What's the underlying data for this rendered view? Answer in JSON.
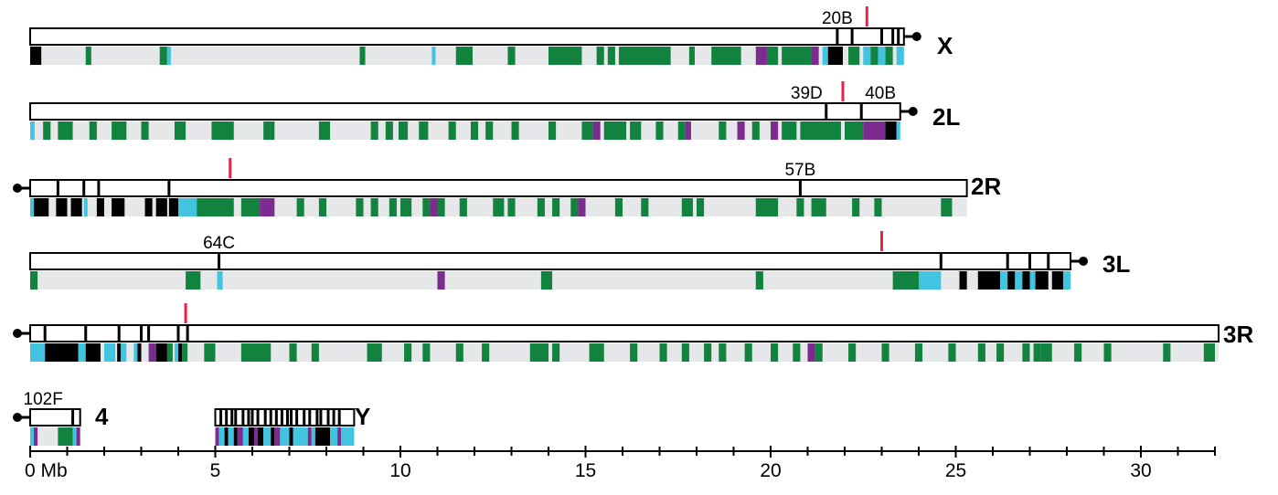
{
  "colors": {
    "track": "#e6e7e8",
    "green": "#12833f",
    "purple": "#7b2c8e",
    "cyan": "#42c3df",
    "black": "#000000",
    "red": "#e8234a",
    "outline": "#000000"
  },
  "axis": {
    "min": 0,
    "max": 32,
    "major_ticks": [
      0,
      5,
      10,
      15,
      20,
      25,
      30
    ],
    "tick_labels": [
      "0 Mb",
      "5",
      "10",
      "15",
      "20",
      "25",
      "30"
    ]
  },
  "chromosomes": [
    {
      "name": "X",
      "centromere": "right",
      "length": 23.6,
      "band_labels": [
        {
          "text": "20B",
          "pos": 21.8
        }
      ],
      "band_lines": [
        21.8,
        22.2,
        23.0,
        23.3,
        23.45
      ],
      "red_marker": 22.6,
      "features": [
        [
          "black",
          0.0,
          0.3
        ],
        [
          "green",
          1.5,
          1.65
        ],
        [
          "green",
          3.5,
          3.7
        ],
        [
          "cyan",
          3.7,
          3.8
        ],
        [
          "green",
          8.9,
          9.05
        ],
        [
          "cyan",
          10.85,
          10.95
        ],
        [
          "green",
          11.5,
          11.95
        ],
        [
          "green",
          12.9,
          13.1
        ],
        [
          "green",
          14.0,
          14.9
        ],
        [
          "green",
          15.3,
          15.5
        ],
        [
          "green",
          15.6,
          15.8
        ],
        [
          "green",
          15.9,
          17.3
        ],
        [
          "green",
          17.8,
          17.95
        ],
        [
          "green",
          18.4,
          19.2
        ],
        [
          "purple",
          19.6,
          19.9
        ],
        [
          "green",
          19.9,
          20.2
        ],
        [
          "green",
          20.3,
          21.1
        ],
        [
          "purple",
          21.1,
          21.3
        ],
        [
          "cyan",
          21.4,
          21.55
        ],
        [
          "black",
          21.55,
          21.95
        ],
        [
          "green",
          22.1,
          22.4
        ],
        [
          "cyan",
          22.5,
          22.7
        ],
        [
          "green",
          22.7,
          22.9
        ],
        [
          "cyan",
          22.9,
          23.1
        ],
        [
          "green",
          23.1,
          23.3
        ],
        [
          "cyan",
          23.4,
          23.6
        ]
      ]
    },
    {
      "name": "2L",
      "centromere": "right",
      "length": 23.5,
      "band_labels": [
        {
          "text": "39D",
          "pos": 21.5,
          "anchor": "end"
        },
        {
          "text": "40B",
          "pos": 22.45,
          "anchor": "start"
        }
      ],
      "band_lines": [
        21.5,
        22.45
      ],
      "red_marker": 21.95,
      "features": [
        [
          "cyan",
          0.0,
          0.12
        ],
        [
          "green",
          0.35,
          0.55
        ],
        [
          "green",
          0.75,
          1.15
        ],
        [
          "green",
          1.6,
          1.8
        ],
        [
          "green",
          2.2,
          2.6
        ],
        [
          "green",
          3.0,
          3.2
        ],
        [
          "green",
          3.9,
          4.2
        ],
        [
          "green",
          4.9,
          5.5
        ],
        [
          "green",
          6.3,
          6.6
        ],
        [
          "green",
          7.8,
          8.1
        ],
        [
          "green",
          9.2,
          9.4
        ],
        [
          "green",
          9.6,
          9.8
        ],
        [
          "green",
          9.95,
          10.2
        ],
        [
          "green",
          10.5,
          10.75
        ],
        [
          "green",
          11.3,
          11.5
        ],
        [
          "green",
          11.9,
          12.1
        ],
        [
          "green",
          12.3,
          12.5
        ],
        [
          "green",
          13.0,
          13.2
        ],
        [
          "green",
          14.0,
          14.2
        ],
        [
          "green",
          14.9,
          15.2
        ],
        [
          "purple",
          15.2,
          15.4
        ],
        [
          "green",
          15.5,
          16.1
        ],
        [
          "green",
          16.2,
          16.5
        ],
        [
          "green",
          16.9,
          17.1
        ],
        [
          "green",
          17.5,
          17.7
        ],
        [
          "purple",
          17.7,
          17.85
        ],
        [
          "green",
          18.6,
          18.8
        ],
        [
          "purple",
          19.1,
          19.3
        ],
        [
          "green",
          19.5,
          19.7
        ],
        [
          "purple",
          20.0,
          20.2
        ],
        [
          "green",
          20.3,
          20.7
        ],
        [
          "green",
          20.8,
          21.9
        ],
        [
          "green",
          22.0,
          22.5
        ],
        [
          "purple",
          22.5,
          23.1
        ],
        [
          "black",
          23.1,
          23.4
        ],
        [
          "cyan",
          23.4,
          23.5
        ]
      ]
    },
    {
      "name": "2R",
      "centromere": "left",
      "length": 25.3,
      "band_labels": [
        {
          "text": "57B",
          "pos": 20.8
        }
      ],
      "band_lines": [
        0.75,
        1.45,
        1.85,
        3.75,
        20.8
      ],
      "red_marker": 5.4,
      "features": [
        [
          "cyan",
          0.0,
          0.1
        ],
        [
          "black",
          0.1,
          0.5
        ],
        [
          "black",
          0.7,
          1.0
        ],
        [
          "black",
          1.1,
          1.4
        ],
        [
          "cyan",
          1.45,
          1.55
        ],
        [
          "black",
          1.8,
          2.0
        ],
        [
          "black",
          2.2,
          2.55
        ],
        [
          "black",
          3.1,
          3.3
        ],
        [
          "black",
          3.4,
          3.7
        ],
        [
          "black",
          3.75,
          4.0
        ],
        [
          "cyan",
          4.0,
          4.5
        ],
        [
          "green",
          4.5,
          5.5
        ],
        [
          "green",
          5.7,
          6.2
        ],
        [
          "purple",
          6.2,
          6.6
        ],
        [
          "green",
          7.2,
          7.4
        ],
        [
          "green",
          7.8,
          8.0
        ],
        [
          "green",
          8.8,
          9.0
        ],
        [
          "green",
          9.2,
          9.4
        ],
        [
          "green",
          9.7,
          9.9
        ],
        [
          "green",
          10.0,
          10.3
        ],
        [
          "green",
          10.6,
          10.8
        ],
        [
          "purple",
          10.8,
          11.0
        ],
        [
          "green",
          11.0,
          11.2
        ],
        [
          "green",
          11.6,
          11.8
        ],
        [
          "green",
          12.5,
          12.8
        ],
        [
          "green",
          12.9,
          13.1
        ],
        [
          "green",
          13.7,
          13.9
        ],
        [
          "green",
          14.1,
          14.3
        ],
        [
          "green",
          14.6,
          14.8
        ],
        [
          "purple",
          14.8,
          15.0
        ],
        [
          "green",
          15.8,
          16.0
        ],
        [
          "green",
          16.5,
          16.7
        ],
        [
          "green",
          17.6,
          17.9
        ],
        [
          "green",
          18.0,
          18.2
        ],
        [
          "green",
          19.6,
          20.2
        ],
        [
          "green",
          20.7,
          20.9
        ],
        [
          "green",
          21.1,
          21.5
        ],
        [
          "green",
          22.2,
          22.4
        ],
        [
          "green",
          22.8,
          23.0
        ],
        [
          "green",
          24.6,
          24.9
        ]
      ]
    },
    {
      "name": "3L",
      "centromere": "right",
      "length": 28.1,
      "band_labels": [
        {
          "text": "64C",
          "pos": 5.1
        }
      ],
      "band_lines": [
        5.1,
        24.6,
        26.4,
        27.0,
        27.5
      ],
      "red_marker": 23.0,
      "features": [
        [
          "green",
          0.0,
          0.2
        ],
        [
          "green",
          4.2,
          4.6
        ],
        [
          "cyan",
          5.05,
          5.2
        ],
        [
          "purple",
          11.0,
          11.2
        ],
        [
          "green",
          13.8,
          14.1
        ],
        [
          "green",
          19.6,
          19.8
        ],
        [
          "green",
          23.3,
          24.0
        ],
        [
          "cyan",
          24.0,
          24.6
        ],
        [
          "black",
          25.1,
          25.3
        ],
        [
          "black",
          25.6,
          26.2
        ],
        [
          "cyan",
          26.2,
          26.4
        ],
        [
          "black",
          26.4,
          26.6
        ],
        [
          "cyan",
          26.6,
          26.8
        ],
        [
          "black",
          26.8,
          27.0
        ],
        [
          "cyan",
          27.0,
          27.15
        ],
        [
          "black",
          27.15,
          27.5
        ],
        [
          "black",
          27.6,
          27.9
        ],
        [
          "cyan",
          27.9,
          28.1
        ]
      ]
    },
    {
      "name": "3R",
      "centromere": "left",
      "length": 32.1,
      "band_labels": [],
      "band_lines": [
        0.4,
        1.5,
        2.4,
        3.0,
        3.2,
        4.0,
        4.25
      ],
      "red_marker": 4.2,
      "features": [
        [
          "cyan",
          0.0,
          0.4
        ],
        [
          "black",
          0.4,
          1.3
        ],
        [
          "cyan",
          1.3,
          1.5
        ],
        [
          "black",
          1.5,
          1.9
        ],
        [
          "cyan",
          2.0,
          2.3
        ],
        [
          "black",
          2.35,
          2.45
        ],
        [
          "cyan",
          2.45,
          2.6
        ],
        [
          "cyan",
          2.8,
          3.0
        ],
        [
          "black",
          2.9,
          3.0
        ],
        [
          "purple",
          3.2,
          3.4
        ],
        [
          "black",
          3.4,
          3.7
        ],
        [
          "green",
          3.7,
          3.85
        ],
        [
          "cyan",
          3.9,
          4.0
        ],
        [
          "black",
          4.0,
          4.1
        ],
        [
          "green",
          4.1,
          4.25
        ],
        [
          "green",
          4.7,
          5.0
        ],
        [
          "green",
          5.7,
          6.5
        ],
        [
          "green",
          7.0,
          7.2
        ],
        [
          "green",
          7.6,
          7.8
        ],
        [
          "green",
          9.1,
          9.5
        ],
        [
          "green",
          10.1,
          10.3
        ],
        [
          "green",
          10.6,
          10.8
        ],
        [
          "green",
          11.5,
          11.7
        ],
        [
          "green",
          12.2,
          12.4
        ],
        [
          "green",
          13.5,
          14.0
        ],
        [
          "green",
          14.1,
          14.3
        ],
        [
          "green",
          15.1,
          15.5
        ],
        [
          "green",
          16.2,
          16.4
        ],
        [
          "green",
          17.0,
          17.2
        ],
        [
          "green",
          17.6,
          17.8
        ],
        [
          "green",
          18.2,
          18.4
        ],
        [
          "green",
          18.6,
          18.8
        ],
        [
          "green",
          19.3,
          19.5
        ],
        [
          "green",
          20.0,
          20.2
        ],
        [
          "green",
          20.6,
          20.8
        ],
        [
          "purple",
          21.0,
          21.2
        ],
        [
          "green",
          21.2,
          21.4
        ],
        [
          "green",
          22.1,
          22.3
        ],
        [
          "green",
          23.0,
          23.2
        ],
        [
          "green",
          23.9,
          24.1
        ],
        [
          "green",
          24.8,
          25.0
        ],
        [
          "green",
          25.6,
          25.8
        ],
        [
          "green",
          26.1,
          26.3
        ],
        [
          "green",
          26.8,
          27.0
        ],
        [
          "green",
          27.1,
          27.3
        ],
        [
          "green",
          27.3,
          27.6
        ],
        [
          "green",
          28.2,
          28.4
        ],
        [
          "green",
          29.0,
          29.2
        ],
        [
          "green",
          30.6,
          30.8
        ],
        [
          "green",
          31.7,
          32.0
        ]
      ]
    },
    {
      "name": "4",
      "centromere": "left",
      "length": 1.35,
      "band_labels": [
        {
          "text": "102F",
          "pos": 0.9,
          "anchor": "middle",
          "dx": -0.55
        }
      ],
      "band_lines": [
        1.15
      ],
      "red_marker": null,
      "features": [
        [
          "cyan",
          0.0,
          0.1
        ],
        [
          "purple",
          0.1,
          0.2
        ],
        [
          "green",
          0.75,
          1.15
        ],
        [
          "cyan",
          1.15,
          1.25
        ],
        [
          "purple",
          1.25,
          1.35
        ]
      ]
    },
    {
      "name": "Y",
      "centromere": "none",
      "length": 3.75,
      "offset": 5.0,
      "band_labels": [],
      "band_lines": [
        0.15,
        0.3,
        0.45,
        0.55,
        0.75,
        0.9,
        1.0,
        1.15,
        1.35,
        1.5,
        1.65,
        1.8,
        1.95,
        2.05,
        2.2,
        2.4,
        2.55,
        2.75,
        2.85,
        3.05,
        3.2,
        3.35
      ],
      "red_marker": null,
      "features": [
        [
          "purple",
          0.0,
          0.1
        ],
        [
          "cyan",
          0.1,
          0.25
        ],
        [
          "black",
          0.25,
          0.35
        ],
        [
          "cyan",
          0.35,
          0.5
        ],
        [
          "black",
          0.5,
          0.6
        ],
        [
          "purple",
          0.6,
          0.75
        ],
        [
          "cyan",
          0.75,
          0.9
        ],
        [
          "black",
          0.9,
          1.05
        ],
        [
          "purple",
          1.05,
          1.15
        ],
        [
          "black",
          1.15,
          1.3
        ],
        [
          "cyan",
          1.3,
          1.5
        ],
        [
          "black",
          1.5,
          1.6
        ],
        [
          "purple",
          1.6,
          1.75
        ],
        [
          "cyan",
          1.75,
          2.0
        ],
        [
          "black",
          2.0,
          2.1
        ],
        [
          "cyan",
          2.1,
          2.5
        ],
        [
          "purple",
          2.5,
          2.6
        ],
        [
          "cyan",
          2.6,
          2.7
        ],
        [
          "black",
          2.7,
          3.1
        ],
        [
          "cyan",
          3.1,
          3.3
        ],
        [
          "purple",
          3.3,
          3.4
        ],
        [
          "cyan",
          3.4,
          3.75
        ]
      ]
    }
  ]
}
